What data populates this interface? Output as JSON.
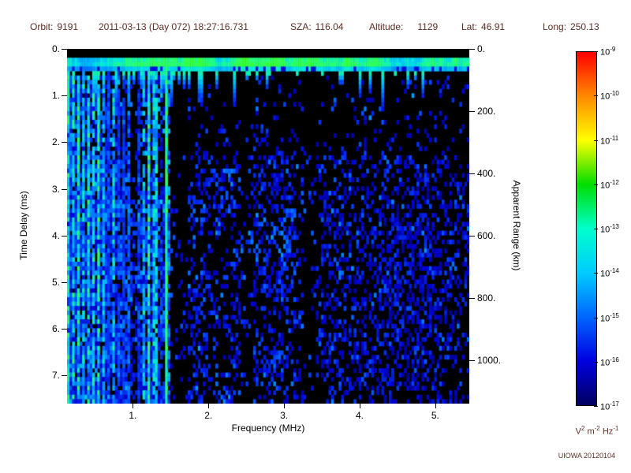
{
  "header": {
    "orbit_label": "Orbit:",
    "orbit_value": "9191",
    "datetime": "2011-03-13 (Day 072) 18:27:16.731",
    "sza_label": "SZA:",
    "sza_value": "116.04",
    "altitude_label": "Altitude:",
    "altitude_value": "1129",
    "lat_label": "Lat:",
    "lat_value": "46.91",
    "long_label": "Long:",
    "long_value": "250.13"
  },
  "chart_data": {
    "type": "heatmap",
    "title": "",
    "xlabel": "Frequency (MHz)",
    "ylabel": "Time Delay (ms)",
    "y2label": "Apparent Range (km)",
    "xlim": [
      0.13,
      5.45
    ],
    "ylim": [
      0,
      7.6
    ],
    "y2lim": [
      0,
      1140
    ],
    "x_tick_values": [
      1,
      2,
      3,
      4,
      5
    ],
    "x_tick_labels": [
      "1.",
      "2.",
      "3.",
      "4.",
      "5."
    ],
    "y_tick_values": [
      0,
      1,
      2,
      3,
      4,
      5,
      6,
      7
    ],
    "y_tick_labels": [
      "0.",
      "1.",
      "2.",
      "3.",
      "4.",
      "5.",
      "6.",
      "7."
    ],
    "y2_tick_values": [
      0,
      200,
      400,
      600,
      800,
      1000
    ],
    "y2_tick_labels": [
      "0.",
      "200.",
      "400.",
      "600.",
      "800.",
      "1000."
    ],
    "colorbar": {
      "tick_base": "10",
      "tick_exponents": [
        "-9",
        "-10",
        "-11",
        "-12",
        "-13",
        "-14",
        "-15",
        "-16",
        "-17"
      ],
      "gradient_bottom_to_top": [
        "#000060",
        "#0000e0",
        "#0066ff",
        "#00ccff",
        "#00ffcc",
        "#00dd00",
        "#ffff00",
        "#ff8800",
        "#ff0000"
      ],
      "unit_parts": [
        [
          "V",
          "2"
        ],
        [
          "m",
          "-2"
        ],
        [
          "Hz",
          "-1"
        ]
      ]
    },
    "features": {
      "seed": 9191,
      "background": "#000000",
      "surface_band": {
        "t_start": 0.22,
        "t_end": 0.5,
        "intensity_min": 0.42,
        "intensity_max": 0.72
      },
      "drips": {
        "count": 42,
        "f_min": 0.15,
        "f_max": 4.9,
        "max_t": 1.3
      },
      "plasma_stripes": {
        "f_start": 0.14,
        "f_spacing": 0.065,
        "f_end": 1.33,
        "bright_fraction": 0.4
      },
      "strong_line_mhz": 1.43,
      "dark_columns_mhz": [
        [
          0.97,
          1.04
        ],
        [
          1.47,
          1.72
        ],
        [
          2.42,
          2.58
        ],
        [
          3.25,
          3.42
        ]
      ],
      "speckle": {
        "count": 4200,
        "low_f_bias": 1.7
      },
      "clusters": {
        "count": 60
      },
      "diffuse_cloud": {
        "f_center": 4.6,
        "t_center": 5.0,
        "f_sigma": 0.55,
        "t_sigma": 1.8,
        "count": 900
      },
      "bottom_left_noise": {
        "count": 1500,
        "f_max": 1.48,
        "t_min": 3.0
      },
      "colormap_stops": [
        [
          0.0,
          0,
          0,
          90
        ],
        [
          0.12,
          0,
          0,
          210
        ],
        [
          0.25,
          0,
          70,
          255
        ],
        [
          0.38,
          0,
          160,
          255
        ],
        [
          0.5,
          0,
          230,
          230
        ],
        [
          0.62,
          40,
          255,
          120
        ],
        [
          0.75,
          60,
          255,
          40
        ],
        [
          0.85,
          255,
          255,
          0
        ],
        [
          1.0,
          255,
          0,
          0
        ]
      ]
    }
  },
  "footer": {
    "credit": "UIOWA 20120104"
  },
  "colors": {
    "annotation": "#5c2e24",
    "axis_text": "#000000",
    "plot_bg": "#000000",
    "page_bg": "#ffffff"
  }
}
